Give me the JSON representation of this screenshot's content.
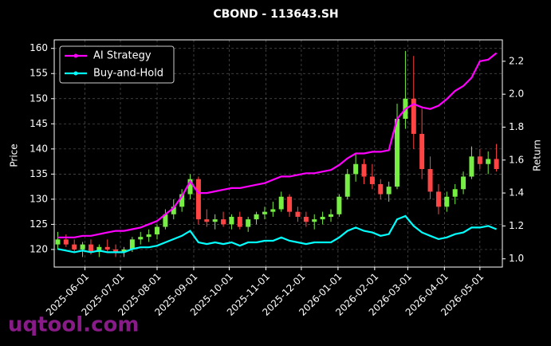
{
  "chart_data": {
    "type": "candlestick",
    "title": "CBOND - 113643.SH",
    "watermark": "uqtool.com",
    "ylabel": "Price",
    "y2label": "Return",
    "x": [
      "2025-05-09",
      "2025-05-16",
      "2025-05-23",
      "2025-05-30",
      "2025-06-06",
      "2025-06-13",
      "2025-06-20",
      "2025-06-27",
      "2025-07-04",
      "2025-07-11",
      "2025-07-18",
      "2025-07-25",
      "2025-08-01",
      "2025-08-08",
      "2025-08-15",
      "2025-08-22",
      "2025-08-29",
      "2025-09-05",
      "2025-09-12",
      "2025-09-19",
      "2025-09-26",
      "2025-10-03",
      "2025-10-10",
      "2025-10-17",
      "2025-10-24",
      "2025-10-31",
      "2025-11-07",
      "2025-11-14",
      "2025-11-21",
      "2025-11-28",
      "2025-12-05",
      "2025-12-12",
      "2025-12-19",
      "2025-12-26",
      "2026-01-02",
      "2026-01-09",
      "2026-01-16",
      "2026-01-23",
      "2026-01-30",
      "2026-02-06",
      "2026-02-13",
      "2026-02-20",
      "2026-02-27",
      "2026-03-06",
      "2026-03-13",
      "2026-03-20",
      "2026-03-27",
      "2026-04-03",
      "2026-04-10",
      "2026-04-17",
      "2026-04-24",
      "2026-05-01",
      "2026-05-08",
      "2026-05-15"
    ],
    "open": [
      121,
      122,
      121,
      120,
      121,
      119.5,
      120.5,
      120,
      119.5,
      120,
      122,
      122.5,
      123,
      124.5,
      127,
      128.5,
      131,
      134,
      126,
      125.5,
      126,
      125,
      126.5,
      124.5,
      126,
      127,
      127.5,
      128,
      130.5,
      127.5,
      126.5,
      125.5,
      126,
      126.5,
      127,
      130.5,
      135,
      137,
      134.5,
      133,
      131,
      132.5,
      146,
      150,
      143,
      136,
      131.5,
      128.5,
      130.5,
      132,
      134.5,
      138.5,
      137,
      138
    ],
    "high": [
      123.5,
      123,
      122,
      121.5,
      122,
      121,
      122,
      121,
      120.5,
      122.5,
      123.5,
      124,
      125,
      128,
      130,
      132,
      135,
      134.5,
      128,
      127,
      127.5,
      127,
      127.5,
      126.5,
      127.5,
      128.5,
      129.5,
      131.5,
      131,
      128.5,
      127.5,
      127,
      127.5,
      128,
      131,
      136,
      139,
      138,
      137,
      134,
      133.5,
      149,
      159.5,
      158.5,
      148,
      138.5,
      133,
      131.5,
      133,
      135.5,
      140.5,
      140,
      139.5,
      141
    ],
    "low": [
      120,
      120.5,
      119.5,
      118.5,
      119,
      118.5,
      119.5,
      118.5,
      118.5,
      119.5,
      121,
      121.5,
      122,
      124,
      126,
      127.5,
      130,
      125,
      124.5,
      124,
      124.5,
      124,
      124,
      123.5,
      125,
      126,
      126.5,
      127.5,
      126.5,
      125.5,
      124.5,
      124,
      125,
      125.5,
      126.5,
      130,
      133.5,
      133,
      132,
      130,
      129.5,
      132,
      144,
      140,
      134,
      130,
      127,
      127.5,
      129,
      131,
      134,
      136,
      135,
      135.5
    ],
    "close": [
      122,
      121,
      120,
      121,
      119.5,
      120.5,
      120,
      119.5,
      120,
      122,
      122.5,
      123,
      124.5,
      127,
      128.5,
      131,
      134,
      126,
      125.5,
      126,
      125,
      126.5,
      124.5,
      126,
      127,
      127.5,
      128,
      130.5,
      127.5,
      126.5,
      125.5,
      126,
      126.5,
      127,
      130.5,
      135,
      137,
      134.5,
      133,
      131,
      132.5,
      146,
      150,
      143,
      136,
      131.5,
      128.5,
      130.5,
      132,
      134.5,
      138.5,
      137,
      138,
      136
    ],
    "up_color": "#77ee44",
    "down_color": "#ff4444",
    "series": [
      {
        "name": "AI Strategy",
        "color": "#ff00ff",
        "axis": "y2",
        "values": [
          1.13,
          1.13,
          1.13,
          1.14,
          1.14,
          1.15,
          1.16,
          1.17,
          1.17,
          1.18,
          1.19,
          1.21,
          1.23,
          1.27,
          1.31,
          1.38,
          1.47,
          1.4,
          1.4,
          1.41,
          1.42,
          1.43,
          1.43,
          1.44,
          1.45,
          1.46,
          1.48,
          1.5,
          1.5,
          1.51,
          1.52,
          1.52,
          1.53,
          1.54,
          1.57,
          1.61,
          1.64,
          1.64,
          1.65,
          1.65,
          1.66,
          1.85,
          1.91,
          1.94,
          1.92,
          1.91,
          1.93,
          1.97,
          2.02,
          2.05,
          2.1,
          2.2,
          2.21,
          2.25
        ]
      },
      {
        "name": "Buy-and-Hold",
        "color": "#00ffff",
        "axis": "y2",
        "values": [
          1.06,
          1.05,
          1.04,
          1.05,
          1.04,
          1.05,
          1.04,
          1.04,
          1.04,
          1.06,
          1.07,
          1.07,
          1.08,
          1.1,
          1.12,
          1.14,
          1.17,
          1.1,
          1.09,
          1.1,
          1.09,
          1.1,
          1.08,
          1.1,
          1.1,
          1.11,
          1.11,
          1.13,
          1.11,
          1.1,
          1.09,
          1.1,
          1.1,
          1.1,
          1.13,
          1.17,
          1.19,
          1.17,
          1.16,
          1.14,
          1.15,
          1.24,
          1.26,
          1.2,
          1.16,
          1.14,
          1.12,
          1.13,
          1.15,
          1.16,
          1.19,
          1.19,
          1.2,
          1.18
        ]
      }
    ],
    "xlim": [
      "2025-05-06",
      "2026-05-20"
    ],
    "xticks": [
      "2025-06-01",
      "2025-07-01",
      "2025-08-01",
      "2025-09-01",
      "2025-10-01",
      "2025-11-01",
      "2025-12-01",
      "2026-01-01",
      "2026-02-01",
      "2026-03-01",
      "2026-04-01",
      "2026-05-01"
    ],
    "ylim": [
      116.5,
      161.7
    ],
    "yticks": [
      120,
      125,
      130,
      135,
      140,
      145,
      150,
      155,
      160
    ],
    "y2lim": [
      0.95,
      2.33
    ],
    "y2ticks": [
      {
        "value": 1.0,
        "label": "1.0"
      },
      1.2,
      1.4,
      1.6,
      1.8,
      {
        "value": 2.0,
        "label": "2.0"
      },
      2.2
    ],
    "grid": true,
    "legend": "upper-left"
  }
}
